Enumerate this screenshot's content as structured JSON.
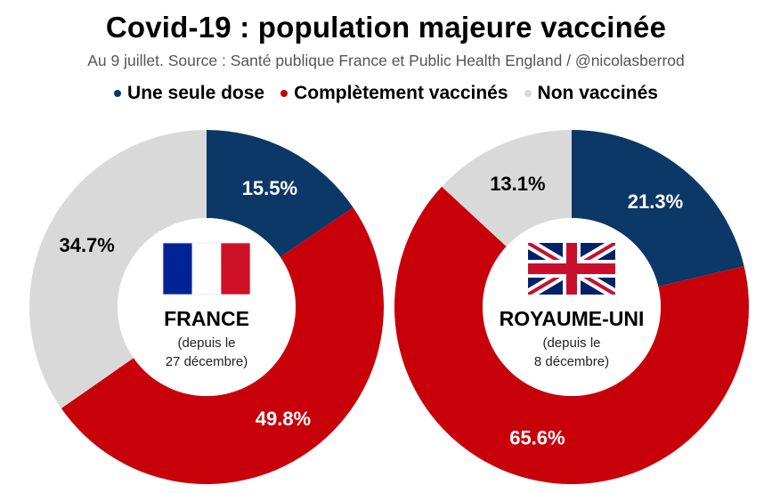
{
  "title": "Covid-19 : population majeure vaccinée",
  "subtitle": "Au 9 juillet. Source : Santé publique France et Public Health England / @nicolasberrod",
  "legend": [
    {
      "label": "Une seule dose",
      "color": "#0b3866"
    },
    {
      "label": "Complètement vaccinés",
      "color": "#c8000a"
    },
    {
      "label": "Non vaccinés",
      "color": "#d9d9d9"
    }
  ],
  "chart_data": [
    {
      "type": "pie",
      "variant": "donut",
      "country": "FRANCE",
      "since_line1": "(depuis le",
      "since_line2": "27 décembre)",
      "flag_icon": "france-flag-icon",
      "slices": [
        {
          "category": "Une seule dose",
          "value": 15.5,
          "label": "15.5%",
          "color": "#0b3866",
          "label_color": "#ffffff"
        },
        {
          "category": "Complètement vaccinés",
          "value": 49.8,
          "label": "49.8%",
          "color": "#c8000a",
          "label_color": "#ffffff"
        },
        {
          "category": "Non vaccinés",
          "value": 34.7,
          "label": "34.7%",
          "color": "#d9d9d9",
          "label_color": "#000000"
        }
      ]
    },
    {
      "type": "pie",
      "variant": "donut",
      "country": "ROYAUME-UNI",
      "since_line1": "(depuis le",
      "since_line2": "8 décembre)",
      "flag_icon": "uk-flag-icon",
      "slices": [
        {
          "category": "Une seule dose",
          "value": 21.3,
          "label": "21.3%",
          "color": "#0b3866",
          "label_color": "#ffffff"
        },
        {
          "category": "Complètement vaccinés",
          "value": 65.6,
          "label": "65.6%",
          "color": "#c8000a",
          "label_color": "#ffffff"
        },
        {
          "category": "Non vaccinés",
          "value": 13.1,
          "label": "13.1%",
          "color": "#d9d9d9",
          "label_color": "#000000"
        }
      ]
    }
  ]
}
